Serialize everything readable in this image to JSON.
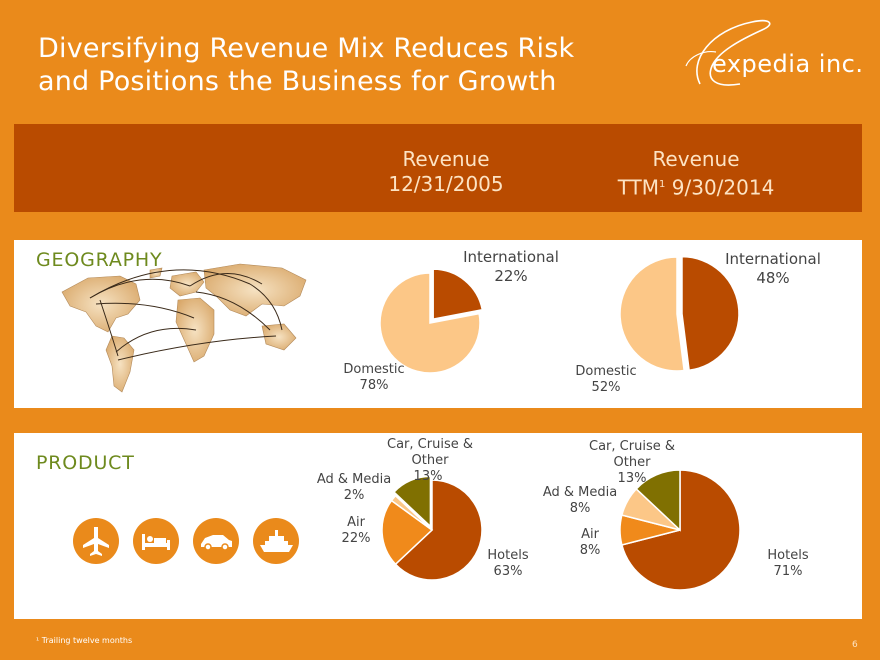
{
  "slide": {
    "title_line1": "Diversifying Revenue Mix Reduces Risk",
    "title_line2": "and Positions the Business for Growth",
    "logo_text": "expedia inc.",
    "footnote": "¹ Trailing twelve months",
    "page_number": "6"
  },
  "header": {
    "col1_line1": "Revenue",
    "col1_line2": "12/31/2005",
    "col2_line1": "Revenue",
    "col2_line2_prefix": "TTM",
    "col2_sup": "1",
    "col2_line2_suffix": " 9/30/2014"
  },
  "sections": {
    "geography": "GEOGRAPHY",
    "product": "PRODUCT"
  },
  "colors": {
    "background": "#ea8a1b",
    "band": "#b94b00",
    "hotels": "#b94b00",
    "air": "#f08a1b",
    "ad_media": "#fcc787",
    "car_cruise_other": "#807001",
    "international": "#b94b00",
    "domestic": "#fcc787",
    "section_label": "#6e8a1e"
  },
  "icons": [
    "world-map-icon",
    "airplane-icon",
    "bed-icon",
    "car-icon",
    "cruise-ship-icon"
  ],
  "chart_data": [
    {
      "type": "pie",
      "period": "12/31/2005",
      "section": "GEOGRAPHY",
      "slices": [
        {
          "key": "international",
          "label": "International",
          "pct_label": "22%",
          "value": 22
        },
        {
          "key": "domestic",
          "label": "Domestic",
          "pct_label": "78%",
          "value": 78
        }
      ]
    },
    {
      "type": "pie",
      "period": "TTM 9/30/2014",
      "section": "GEOGRAPHY",
      "slices": [
        {
          "key": "international",
          "label": "International",
          "pct_label": "48%",
          "value": 48
        },
        {
          "key": "domestic",
          "label": "Domestic",
          "pct_label": "52%",
          "value": 52
        }
      ]
    },
    {
      "type": "pie",
      "period": "12/31/2005",
      "section": "PRODUCT",
      "slices": [
        {
          "key": "hotels",
          "label": "Hotels",
          "pct_label": "63%",
          "value": 63
        },
        {
          "key": "air",
          "label": "Air",
          "pct_label": "22%",
          "value": 22
        },
        {
          "key": "ad_media",
          "label": "Ad & Media",
          "pct_label": "2%",
          "value": 2
        },
        {
          "key": "car_cruise_other",
          "label_line1": "Car, Cruise &",
          "label_line2": "Other",
          "pct_label": "13%",
          "value": 13
        }
      ]
    },
    {
      "type": "pie",
      "period": "TTM 9/30/2014",
      "section": "PRODUCT",
      "slices": [
        {
          "key": "hotels",
          "label": "Hotels",
          "pct_label": "71%",
          "value": 71
        },
        {
          "key": "air",
          "label": "Air",
          "pct_label": "8%",
          "value": 8
        },
        {
          "key": "ad_media",
          "label": "Ad & Media",
          "pct_label": "8%",
          "value": 8
        },
        {
          "key": "car_cruise_other",
          "label_line1": "Car, Cruise &",
          "label_line2": "Other",
          "pct_label": "13%",
          "value": 13
        }
      ]
    }
  ]
}
